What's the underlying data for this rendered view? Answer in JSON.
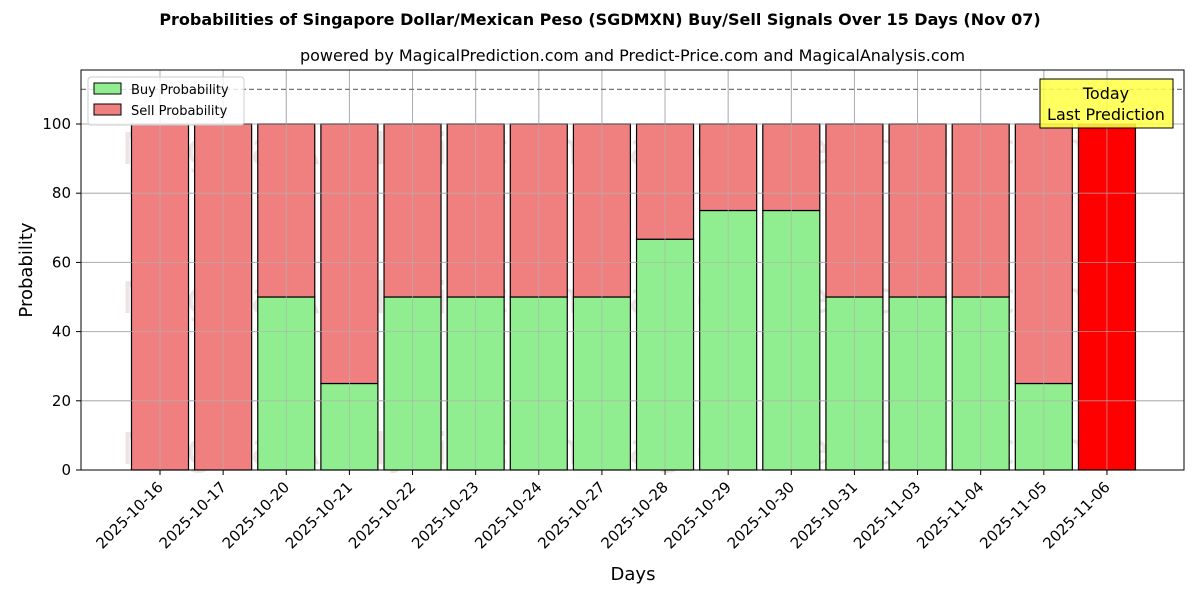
{
  "header": {
    "title": "Probabilities of Singapore Dollar/Mexican Peso (SGDMXN) Buy/Sell Signals Over 15 Days (Nov 07)",
    "subtitle": "powered by MagicalPrediction.com and Predict-Price.com and MagicalAnalysis.com"
  },
  "legend": {
    "buy_label": "Buy Probability",
    "sell_label": "Sell Probability"
  },
  "annotation": {
    "line1": "Today",
    "line2": "Last Prediction"
  },
  "watermarks": [
    "MagicalAnalysis.com",
    "MagicalPrediction.com"
  ],
  "colors": {
    "buy": "#90ee90",
    "sell": "#f08080",
    "today_sell": "#ff0000",
    "annotation_bg": "#ffff44"
  },
  "chart_data": {
    "type": "bar",
    "stacked": true,
    "title": "Probabilities of Singapore Dollar/Mexican Peso (SGDMXN) Buy/Sell Signals Over 15 Days (Nov 07)",
    "subtitle": "powered by MagicalPrediction.com and Predict-Price.com and MagicalAnalysis.com",
    "xlabel": "Days",
    "ylabel": "Probability",
    "ylim": [
      0,
      115
    ],
    "yticks": [
      0,
      20,
      40,
      60,
      80,
      100
    ],
    "grid": true,
    "legend_position": "upper left",
    "reference_line": {
      "y": 110,
      "style": "dashed"
    },
    "categories": [
      "2025-10-16",
      "2025-10-17",
      "2025-10-20",
      "2025-10-21",
      "2025-10-22",
      "2025-10-23",
      "2025-10-24",
      "2025-10-27",
      "2025-10-28",
      "2025-10-29",
      "2025-10-30",
      "2025-10-31",
      "2025-11-03",
      "2025-11-04",
      "2025-11-05",
      "2025-11-06"
    ],
    "series": [
      {
        "name": "Buy Probability",
        "values": [
          0,
          0,
          50,
          25,
          50,
          50,
          50,
          50,
          66.7,
          75,
          75,
          50,
          50,
          50,
          25,
          0
        ]
      },
      {
        "name": "Sell Probability",
        "values": [
          100,
          100,
          50,
          75,
          50,
          50,
          50,
          50,
          33.3,
          25,
          25,
          50,
          50,
          50,
          75,
          100
        ]
      }
    ],
    "annotations": [
      {
        "text": "Today\nLast Prediction",
        "category": "2025-11-06"
      }
    ]
  }
}
